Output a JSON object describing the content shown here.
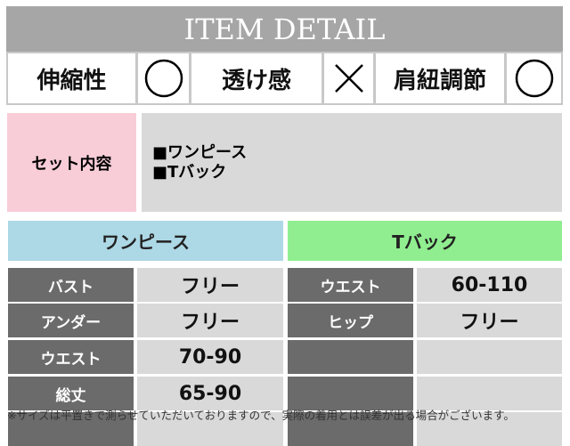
{
  "header": {
    "title": "ITEM DETAIL"
  },
  "properties": [
    {
      "label": "伸縮性",
      "mark": "circle"
    },
    {
      "label": "透け感",
      "mark": "cross"
    },
    {
      "label": "肩紐調節",
      "mark": "circle"
    }
  ],
  "set": {
    "label": "セット内容",
    "items": [
      "■ワンピース",
      "■Tバック"
    ]
  },
  "sections": [
    {
      "title": "ワンピース",
      "color": "#add8e6",
      "rows": [
        {
          "key": "バスト",
          "value": "フリー"
        },
        {
          "key": "アンダー",
          "value": "フリー"
        },
        {
          "key": "ウエスト",
          "value": "70-90"
        },
        {
          "key": "総丈",
          "value": "65-90"
        },
        {
          "key": "",
          "value": ""
        }
      ]
    },
    {
      "title": "Tバック",
      "color": "#90ee90",
      "rows": [
        {
          "key": "ウエスト",
          "value": "60-110"
        },
        {
          "key": "ヒップ",
          "value": "フリー"
        },
        {
          "key": "",
          "value": ""
        },
        {
          "key": "",
          "value": ""
        },
        {
          "key": "",
          "value": ""
        }
      ]
    }
  ],
  "note": "※サイズは平置きで測らせていただいておりますので、実際の着用とは誤差が出る場合がございます。"
}
